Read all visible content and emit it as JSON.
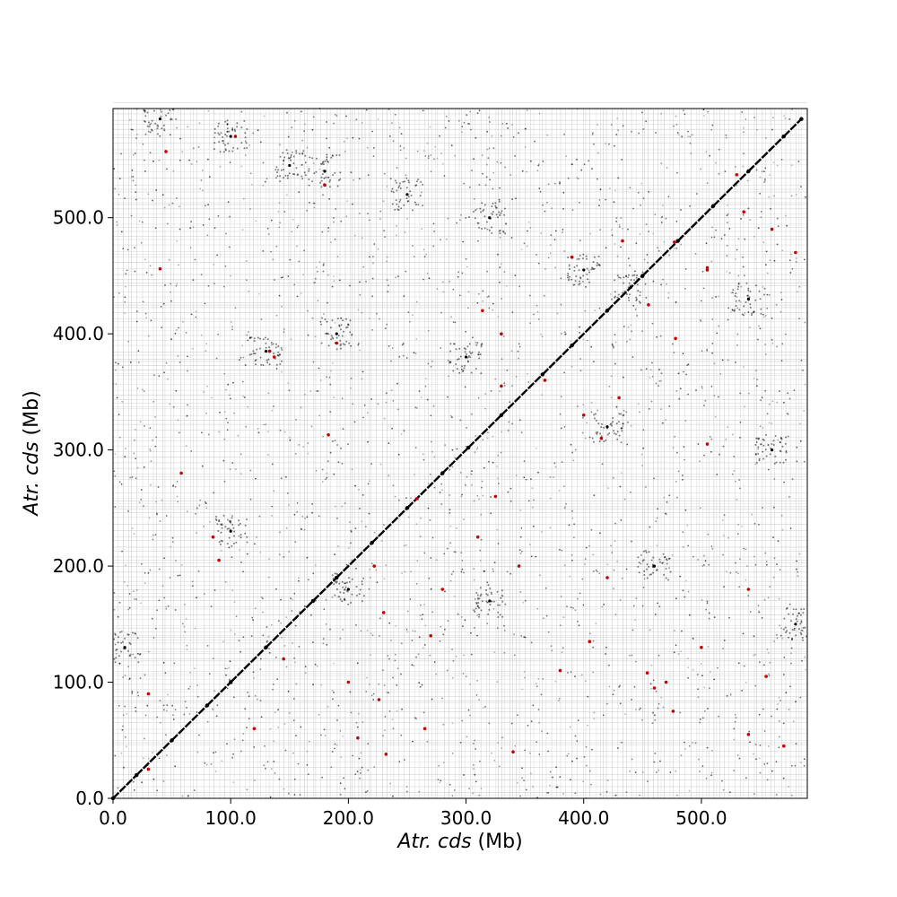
{
  "chart_data": {
    "type": "scatter",
    "title": "",
    "xlabel": {
      "italic": "Atr. cds",
      "unit": " (Mb)"
    },
    "ylabel": {
      "italic": "Atr. cds",
      "unit": " (Mb)"
    },
    "xlim": [
      0,
      590
    ],
    "ylim": [
      0,
      594
    ],
    "x_ticks": [
      0,
      100,
      200,
      300,
      400,
      500
    ],
    "y_ticks": [
      0,
      100,
      200,
      300,
      400,
      500
    ],
    "x_tick_labels": [
      "0.0",
      "100.0",
      "200.0",
      "300.0",
      "400.0",
      "500.0"
    ],
    "y_tick_labels": [
      "0.0",
      "100.0",
      "200.0",
      "300.0",
      "400.0",
      "500.0"
    ],
    "grid": true,
    "legend": "none",
    "colors": {
      "match": "#000000",
      "highlight": "#cc0000",
      "grid": "#b8b8b8"
    },
    "series": [
      {
        "style": "diagonal",
        "color": "#000000",
        "x": [
          0,
          20,
          50,
          80,
          100,
          130,
          170,
          190,
          220,
          250,
          280,
          302,
          330,
          365,
          390,
          420,
          450,
          480,
          510,
          540,
          570,
          585
        ],
        "y": [
          0,
          20,
          50,
          80,
          100,
          130,
          170,
          190,
          220,
          250,
          280,
          302,
          330,
          365,
          390,
          420,
          450,
          480,
          510,
          540,
          570,
          585
        ]
      },
      {
        "style": "highlight",
        "color": "#cc0000",
        "x": [
          104,
          180,
          40,
          45,
          530,
          580,
          505,
          390,
          477,
          505,
          433,
          455,
          478,
          536,
          330,
          314,
          330,
          325,
          560,
          430,
          133,
          137,
          190,
          367,
          183,
          400,
          415,
          505,
          58,
          258,
          85,
          310,
          345,
          420,
          90,
          222,
          405,
          540,
          145,
          555,
          270,
          30,
          200,
          120,
          380,
          454,
          476,
          226,
          208,
          232,
          230,
          265,
          340,
          280,
          470,
          500,
          460,
          30,
          540,
          570
        ],
        "y": [
          570,
          528,
          456,
          557,
          537,
          470,
          455,
          466,
          479,
          457,
          480,
          425,
          396,
          505,
          400,
          420,
          355,
          260,
          490,
          345,
          385,
          380,
          392,
          360,
          313,
          330,
          310,
          305,
          280,
          258,
          225,
          225,
          200,
          190,
          205,
          200,
          135,
          180,
          120,
          105,
          140,
          90,
          100,
          60,
          110,
          108,
          75,
          85,
          52,
          38,
          160,
          60,
          40,
          180,
          100,
          130,
          95,
          25,
          55,
          45
        ]
      },
      {
        "style": "dense",
        "color": "#000000",
        "x": [
          40,
          100,
          150,
          180,
          250,
          320,
          400,
          440,
          540,
          190,
          130,
          300,
          420,
          560,
          100,
          460,
          200,
          320,
          580,
          10
        ],
        "y": [
          585,
          570,
          545,
          540,
          520,
          500,
          455,
          440,
          430,
          400,
          385,
          380,
          320,
          300,
          230,
          200,
          180,
          170,
          150,
          130
        ]
      }
    ]
  }
}
